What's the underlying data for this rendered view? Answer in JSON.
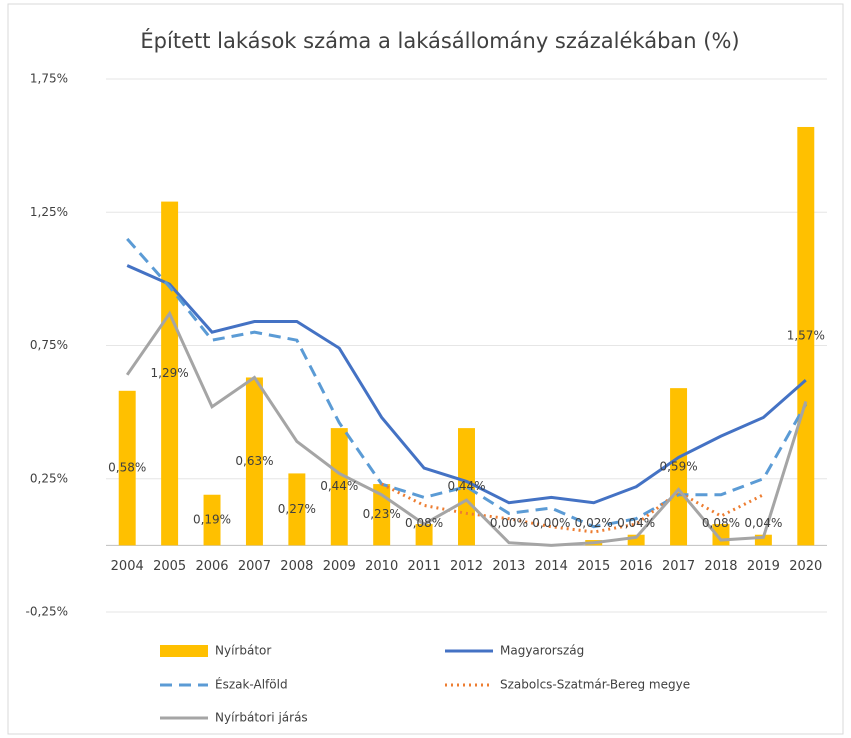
{
  "chart_data": {
    "type": "bar",
    "title": "Épített lakások száma a lakásállomány százalékában (%)",
    "categories": [
      "2004",
      "2005",
      "2006",
      "2007",
      "2008",
      "2009",
      "2010",
      "2011",
      "2012",
      "2013",
      "2014",
      "2015",
      "2016",
      "2017",
      "2018",
      "2019",
      "2020"
    ],
    "ylim": [
      -0.25,
      1.75
    ],
    "yticks": [
      {
        "value": -0.25,
        "label": "-0,25%"
      },
      {
        "value": 0.25,
        "label": "0,25%"
      },
      {
        "value": 0.75,
        "label": "0,75%"
      },
      {
        "value": 1.25,
        "label": "1,25%"
      },
      {
        "value": 1.75,
        "label": "1,75%"
      }
    ],
    "grid": true,
    "legend": "bottom",
    "series": [
      {
        "name": "Nyírbátor",
        "type": "bar",
        "color": "#ffc000",
        "values": [
          0.58,
          1.29,
          0.19,
          0.63,
          0.27,
          0.44,
          0.23,
          0.08,
          0.44,
          0.0,
          0.0,
          0.02,
          0.04,
          0.59,
          0.08,
          0.04,
          1.57
        ],
        "value_labels": [
          "0,58%",
          "1,29%",
          "0,19%",
          "0,63%",
          "0,27%",
          "0,44%",
          "0,23%",
          "0,08%",
          "0,44%",
          "0,00%",
          "0,00%",
          "0,02%",
          "0,04%",
          "0,59%",
          "0,08%",
          "0,04%",
          "1,57%"
        ]
      },
      {
        "name": "Magyarország",
        "type": "line",
        "style": "solid",
        "color": "#4472c4",
        "values": [
          1.05,
          0.98,
          0.8,
          0.84,
          0.84,
          0.74,
          0.48,
          0.29,
          0.24,
          0.16,
          0.18,
          0.16,
          0.22,
          0.33,
          0.41,
          0.48,
          0.62
        ]
      },
      {
        "name": "Észak-Alföld",
        "type": "line",
        "style": "dashed",
        "color": "#5b9bd5",
        "values": [
          1.15,
          0.97,
          0.77,
          0.8,
          0.77,
          0.46,
          0.23,
          0.18,
          0.22,
          0.12,
          0.14,
          0.07,
          0.1,
          0.19,
          0.19,
          0.25,
          0.53
        ]
      },
      {
        "name": "Szabolcs-Szatmár-Bereg megye",
        "type": "line",
        "style": "dotted",
        "color": "#ed7d31",
        "values": [
          null,
          null,
          null,
          null,
          null,
          null,
          0.23,
          0.15,
          0.12,
          0.1,
          0.07,
          0.05,
          0.08,
          0.2,
          0.11,
          0.19,
          null
        ]
      },
      {
        "name": "Nyírbátori járás",
        "type": "line",
        "style": "solid",
        "color": "#a5a5a5",
        "values": [
          0.64,
          0.87,
          0.52,
          0.63,
          0.39,
          0.27,
          0.19,
          0.08,
          0.17,
          0.01,
          0.0,
          0.01,
          0.03,
          0.21,
          0.02,
          0.03,
          0.54
        ]
      }
    ]
  }
}
